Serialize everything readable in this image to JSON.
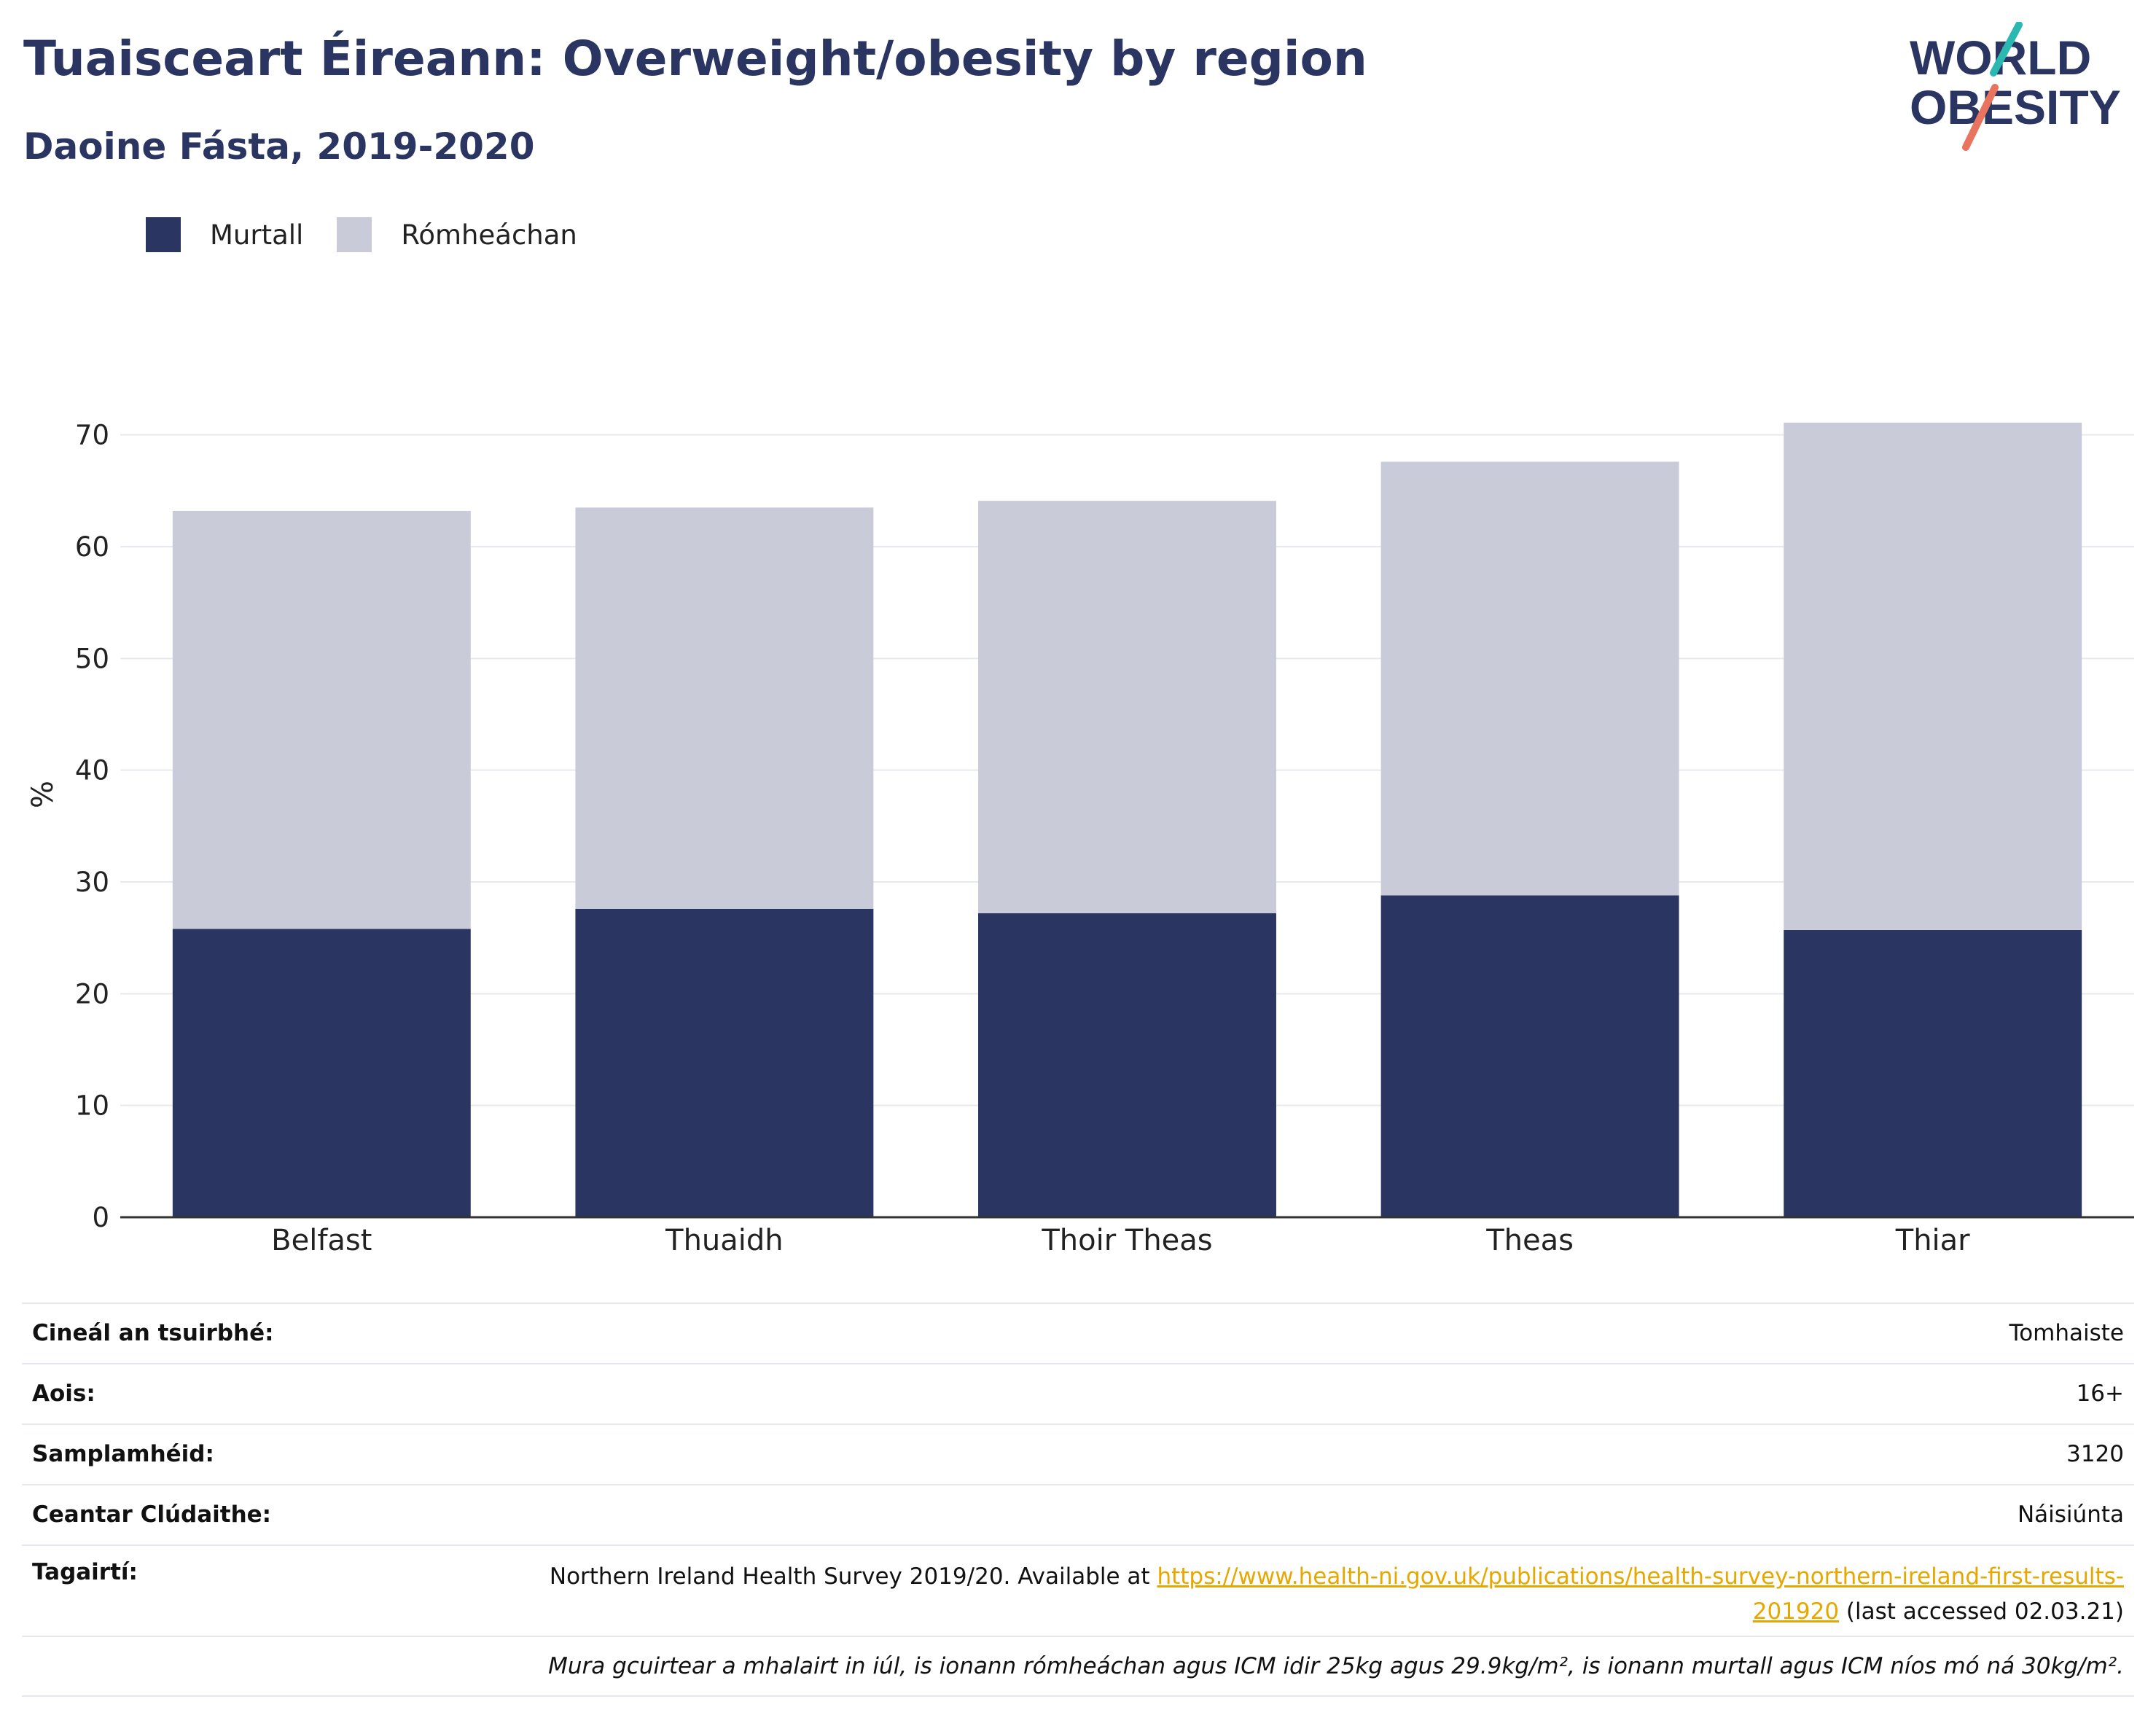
{
  "header": {
    "title": "Tuaisceart Éireann: Overweight/obesity by region",
    "subtitle": "Daoine Fásta, 2019-2020"
  },
  "logo": {
    "line1": "WORLD",
    "line2": "OBESITY"
  },
  "legend": {
    "items": [
      {
        "label": "Murtall",
        "color": "#2a3562"
      },
      {
        "label": "Rómheáchan",
        "color": "#c9ccd8"
      }
    ]
  },
  "chart_data": {
    "type": "bar",
    "stacked": true,
    "categories": [
      "Belfast",
      "Thuaidh",
      "Thoir Theas",
      "Theas",
      "Thiar"
    ],
    "series": [
      {
        "name": "Murtall",
        "color": "#2a3562",
        "values": [
          25.8,
          27.6,
          27.2,
          28.8,
          25.7
        ]
      },
      {
        "name": "Rómheáchan",
        "color": "#c9ccd8",
        "values": [
          37.4,
          35.9,
          36.9,
          38.8,
          45.4
        ]
      }
    ],
    "ylabel": "%",
    "xlabel": "",
    "ylim": [
      0,
      75
    ],
    "yticks": [
      0,
      10,
      20,
      30,
      40,
      50,
      60,
      70
    ],
    "grid": true,
    "legend_position": "top-left"
  },
  "info": {
    "survey_type_label": "Cineál an tsuirbhé:",
    "survey_type_value": "Tomhaiste",
    "age_label": "Aois:",
    "age_value": "16+",
    "sample_label": "Samplamhéid:",
    "sample_value": "3120",
    "coverage_label": "Ceantar Clúdaithe:",
    "coverage_value": "Náisiúnta",
    "references_label": "Tagairtí:",
    "references_prefix": "Northern Ireland Health Survey 2019/20. Available at ",
    "references_link": "https://www.health-ni.gov.uk/publications/health-survey-northern-ireland-first-results-201920",
    "references_suffix": " (last accessed 02.03.21)",
    "note": "Mura gcuirtear a mhalairt in iúl, is ionann rómheáchan agus ICM idir 25kg agus 29.9kg/m², is ionann murtall agus ICM níos mó ná 30kg/m²."
  }
}
